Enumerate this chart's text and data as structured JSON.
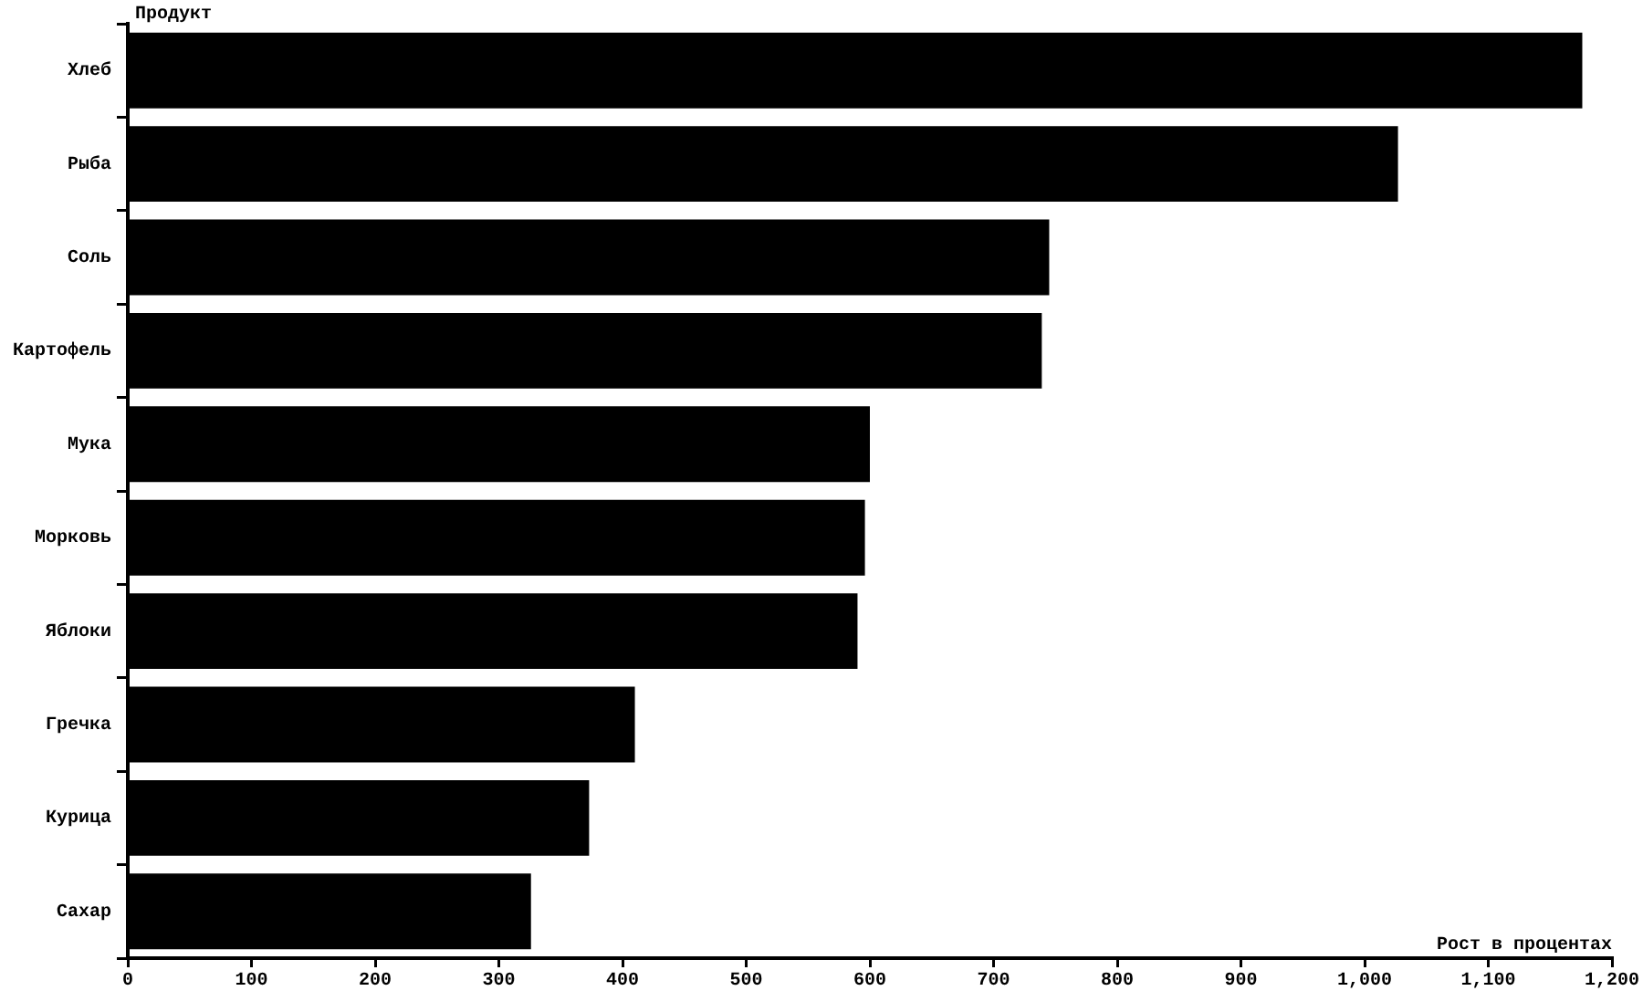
{
  "chart_data": {
    "type": "bar",
    "orientation": "horizontal",
    "xlabel": "Рост в процентах",
    "ylabel": "Продукт",
    "categories": [
      "Хлеб",
      "Рыба",
      "Соль",
      "Картофель",
      "Мука",
      "Морковь",
      "Яблоки",
      "Гречка",
      "Курица",
      "Сахар"
    ],
    "values": [
      1176,
      1027,
      745,
      739,
      600,
      596,
      590,
      410,
      373,
      326
    ],
    "color": "#000000",
    "xlim": [
      0,
      1200
    ],
    "xticks": [
      0,
      100,
      200,
      300,
      400,
      500,
      600,
      700,
      800,
      900,
      {
        "value": 1000,
        "label": "1,000"
      },
      {
        "value": 1100,
        "label": "1,100"
      },
      {
        "value": 1200,
        "label": "1,200"
      }
    ],
    "grid": false
  }
}
